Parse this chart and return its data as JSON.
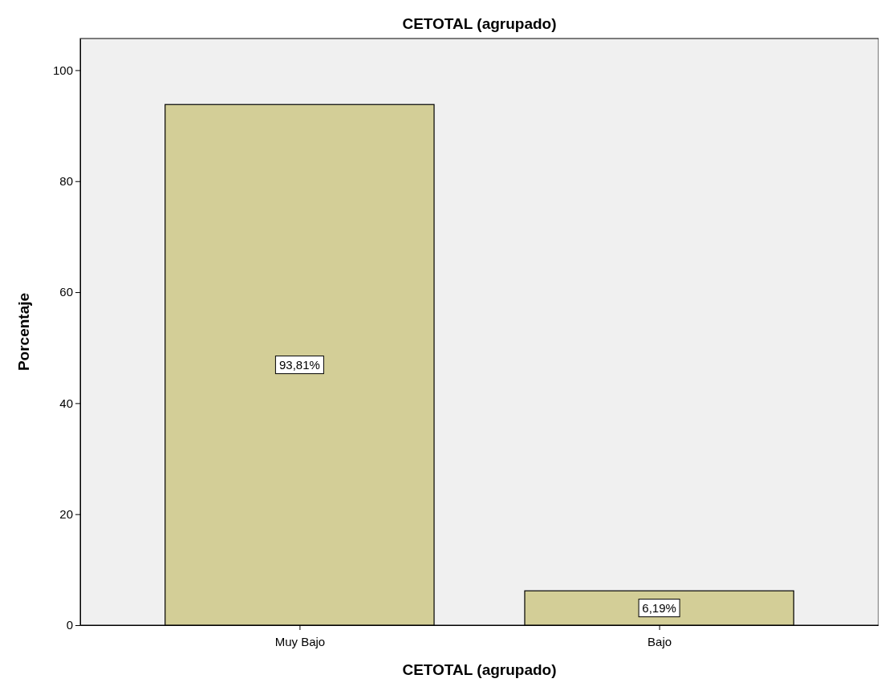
{
  "chart_data": {
    "type": "bar",
    "title": "CETOTAL (agrupado)",
    "xlabel": "CETOTAL (agrupado)",
    "ylabel": "Porcentaje",
    "categories": [
      "Muy Bajo",
      "Bajo"
    ],
    "values": [
      93.81,
      6.19
    ],
    "value_labels": [
      "93,81%",
      "6,19%"
    ],
    "color": "#d3ce97",
    "ylim": [
      0,
      105.7
    ],
    "yticks": [
      0,
      20,
      40,
      60,
      80,
      100
    ],
    "grid": false
  }
}
